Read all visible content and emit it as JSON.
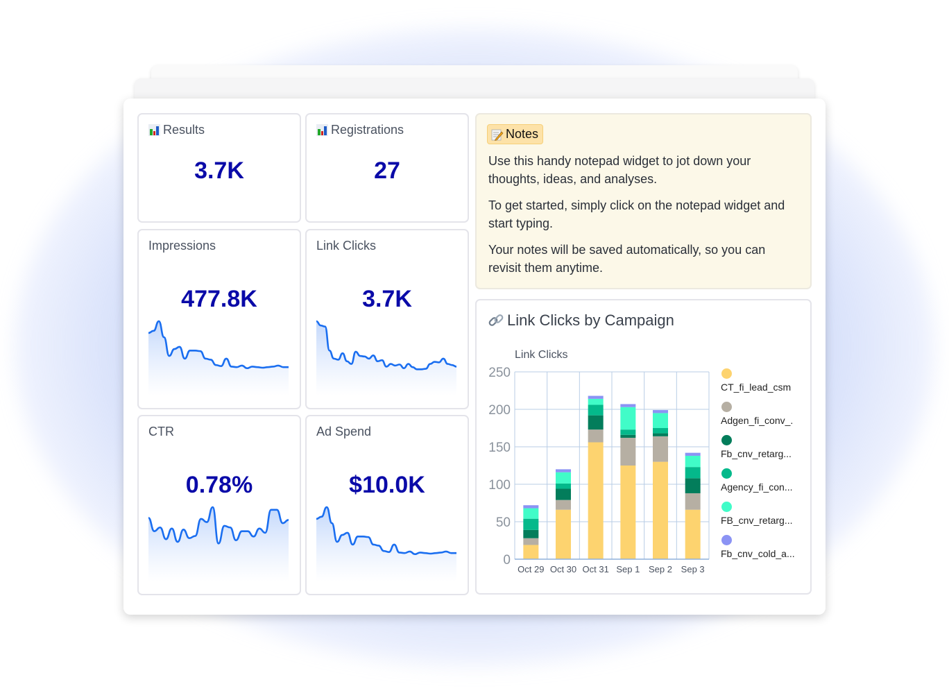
{
  "tiles": {
    "results": {
      "label": "Results",
      "value": "3.7K",
      "icon": "bar-chart-icon"
    },
    "registrations": {
      "label": "Registrations",
      "value": "27",
      "icon": "bar-chart-icon"
    },
    "impressions": {
      "label": "Impressions",
      "value": "477.8K"
    },
    "link_clicks": {
      "label": "Link Clicks",
      "value": "3.7K"
    },
    "ctr": {
      "label": "CTR",
      "value": "0.78%"
    },
    "ad_spend": {
      "label": "Ad Spend",
      "value": "$10.0K"
    }
  },
  "notes": {
    "badge": "Notes",
    "icon": "memo-icon",
    "paragraphs": [
      "Use this handy notepad widget to jot down your thoughts, ideas, and analyses.",
      "To get started, simply click on the notepad widget and start typing.",
      "Your notes will be saved automatically, so you can revisit them anytime."
    ]
  },
  "chart_card": {
    "title": "Link Clicks by Campaign",
    "icon": "link-icon"
  },
  "chart_data": {
    "type": "bar",
    "stacked": true,
    "title": "Link Clicks by Campaign",
    "xlabel": "",
    "ylabel": "Link Clicks",
    "ylim": [
      0,
      250
    ],
    "yticks": [
      0,
      50,
      100,
      150,
      200,
      250
    ],
    "grid": true,
    "legend_position": "right",
    "categories": [
      "Oct 29",
      "Oct 30",
      "Oct 31",
      "Sep 1",
      "Sep 2",
      "Sep 3"
    ],
    "series": [
      {
        "name": "CT_fi_lead_csm",
        "color": "#fdd36f",
        "values": [
          19,
          66,
          156,
          125,
          130,
          66
        ]
      },
      {
        "name": "Adgen_fi_conv_.",
        "color": "#b6afa3",
        "values": [
          9,
          13,
          17,
          37,
          34,
          22
        ]
      },
      {
        "name": "Fb_cnv_retarg...",
        "color": "#037d5b",
        "values": [
          11,
          15,
          19,
          4,
          4,
          20
        ]
      },
      {
        "name": "Agency_fi_con...",
        "color": "#04b98b",
        "values": [
          15,
          7,
          14,
          7,
          7,
          15
        ]
      },
      {
        "name": "FB_cnv_retarg...",
        "color": "#41fcc8",
        "values": [
          14,
          15,
          8,
          30,
          20,
          15
        ]
      },
      {
        "name": "Fb_cnv_cold_a...",
        "color": "#8b93f4",
        "values": [
          4,
          4,
          4,
          4,
          4,
          4
        ]
      }
    ]
  },
  "sparklines": {
    "impressions": [
      0.78,
      0.82,
      1.0,
      0.7,
      0.35,
      0.48,
      0.52,
      0.3,
      0.45,
      0.45,
      0.44,
      0.3,
      0.28,
      0.18,
      0.16,
      0.3,
      0.15,
      0.14,
      0.17,
      0.12,
      0.15,
      0.14,
      0.13,
      0.14,
      0.15,
      0.17,
      0.14,
      0.14
    ],
    "link_clicks": [
      1.0,
      0.92,
      0.9,
      0.45,
      0.3,
      0.28,
      0.4,
      0.25,
      0.2,
      0.43,
      0.35,
      0.34,
      0.3,
      0.36,
      0.25,
      0.27,
      0.15,
      0.2,
      0.17,
      0.19,
      0.12,
      0.2,
      0.14,
      0.1,
      0.1,
      0.11,
      0.2,
      0.24,
      0.23,
      0.3,
      0.2,
      0.18,
      0.15
    ],
    "ctr": [
      0.8,
      0.55,
      0.62,
      0.4,
      0.6,
      0.35,
      0.58,
      0.42,
      0.46,
      0.78,
      0.72,
      1.0,
      0.32,
      0.65,
      0.62,
      0.38,
      0.55,
      0.55,
      0.45,
      0.6,
      0.52,
      0.95,
      0.95,
      0.7,
      0.76
    ],
    "ad_spend": [
      0.78,
      0.82,
      1.0,
      0.7,
      0.35,
      0.48,
      0.52,
      0.3,
      0.45,
      0.45,
      0.44,
      0.3,
      0.28,
      0.18,
      0.16,
      0.3,
      0.15,
      0.14,
      0.17,
      0.12,
      0.15,
      0.14,
      0.13,
      0.14,
      0.15,
      0.17,
      0.14,
      0.14
    ]
  },
  "colors": {
    "value_text": "#0a0aa8",
    "sparkline": "#1a6ef0",
    "notes_bg": "#fcf8e8",
    "grid": "#b8cde6"
  }
}
